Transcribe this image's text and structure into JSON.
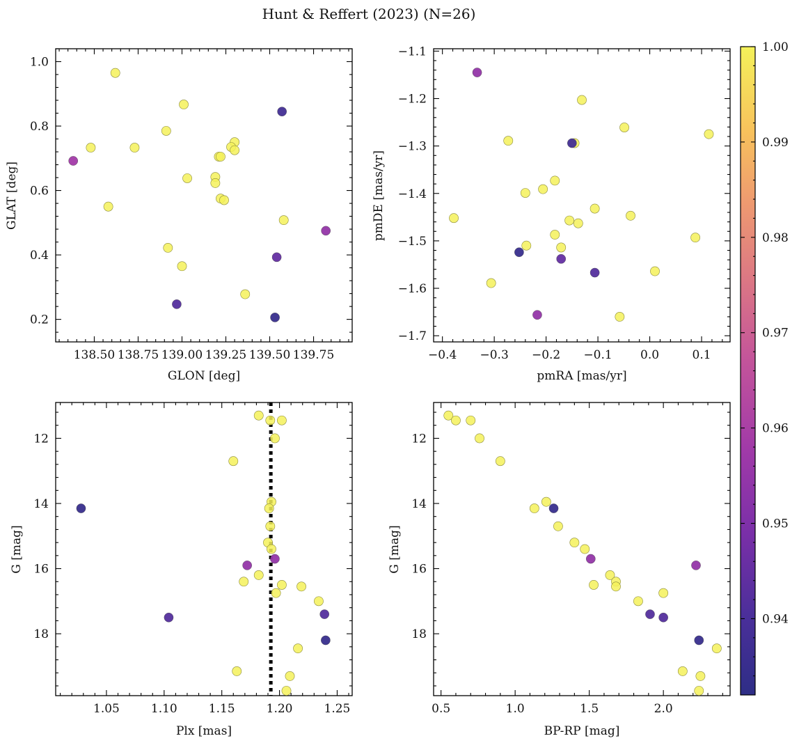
{
  "figure_title": "Hunt & Reffert (2023) (N=26)",
  "colorbar": {
    "cmap": "plasma",
    "range": [
      0.932,
      1.0
    ],
    "ticks": [
      0.94,
      0.95,
      0.96,
      0.97,
      0.98,
      0.99,
      1.0
    ],
    "tick_labels": [
      "0.94",
      "0.95",
      "0.96",
      "0.97",
      "0.98",
      "0.99",
      "1.00"
    ]
  },
  "chart_data": [
    {
      "type": "scatter",
      "id": "pos",
      "xlabel": "GLON [deg]",
      "ylabel": "GLAT [deg]",
      "xlim": [
        138.28,
        139.97
      ],
      "ylim": [
        0.13,
        1.04
      ],
      "yinvert": false,
      "xticks": [
        138.5,
        138.75,
        139.0,
        139.25,
        139.5,
        139.75
      ],
      "xtick_labels": [
        "138.50",
        "138.75",
        "139.00",
        "139.25",
        "139.50",
        "139.75"
      ],
      "yticks": [
        0.2,
        0.4,
        0.6,
        0.8,
        1.0
      ],
      "ytick_labels": [
        "0.2",
        "0.4",
        "0.6",
        "0.8",
        "1.0"
      ],
      "points": [
        [
          138.62,
          0.965,
          1.0
        ],
        [
          139.01,
          0.867,
          1.0
        ],
        [
          139.57,
          0.845,
          0.938
        ],
        [
          138.91,
          0.785,
          1.0
        ],
        [
          138.48,
          0.733,
          1.0
        ],
        [
          138.73,
          0.733,
          1.0
        ],
        [
          139.3,
          0.75,
          1.0
        ],
        [
          139.28,
          0.735,
          1.0
        ],
        [
          139.3,
          0.725,
          1.0
        ],
        [
          139.21,
          0.705,
          1.0
        ],
        [
          139.22,
          0.705,
          1.0
        ],
        [
          138.38,
          0.692,
          0.958
        ],
        [
          139.03,
          0.638,
          1.0
        ],
        [
          139.19,
          0.642,
          1.0
        ],
        [
          139.19,
          0.623,
          1.0
        ],
        [
          139.22,
          0.575,
          1.0
        ],
        [
          139.24,
          0.57,
          1.0
        ],
        [
          138.58,
          0.55,
          1.0
        ],
        [
          139.58,
          0.508,
          1.0
        ],
        [
          139.82,
          0.475,
          0.955
        ],
        [
          138.92,
          0.422,
          1.0
        ],
        [
          139.54,
          0.393,
          0.945
        ],
        [
          139.0,
          0.365,
          1.0
        ],
        [
          139.36,
          0.278,
          1.0
        ],
        [
          138.97,
          0.247,
          0.942
        ],
        [
          139.53,
          0.206,
          0.935
        ]
      ]
    },
    {
      "type": "scatter",
      "id": "pm",
      "xlabel": "pmRA [mas/yr]",
      "ylabel": "pmDE [mas/yr]",
      "xlim": [
        -0.417,
        0.155
      ],
      "ylim": [
        -1.713,
        -1.095
      ],
      "yinvert": false,
      "xticks": [
        -0.4,
        -0.3,
        -0.2,
        -0.1,
        0.0,
        0.1
      ],
      "xtick_labels": [
        "−0.4",
        "−0.3",
        "−0.2",
        "−0.1",
        "0.0",
        "0.1"
      ],
      "yticks": [
        -1.7,
        -1.6,
        -1.5,
        -1.4,
        -1.3,
        -1.2,
        -1.1
      ],
      "ytick_labels": [
        "−1.7",
        "−1.6",
        "−1.5",
        "−1.4",
        "−1.3",
        "−1.2",
        "−1.1"
      ],
      "points": [
        [
          -0.333,
          -1.145,
          0.955
        ],
        [
          -0.131,
          -1.203,
          1.0
        ],
        [
          -0.049,
          -1.261,
          1.0
        ],
        [
          0.114,
          -1.275,
          1.0
        ],
        [
          -0.273,
          -1.289,
          1.0
        ],
        [
          -0.145,
          -1.294,
          1.0
        ],
        [
          -0.15,
          -1.294,
          0.938
        ],
        [
          -0.183,
          -1.373,
          1.0
        ],
        [
          -0.206,
          -1.391,
          1.0
        ],
        [
          -0.24,
          -1.399,
          1.0
        ],
        [
          -0.106,
          -1.432,
          1.0
        ],
        [
          -0.037,
          -1.447,
          1.0
        ],
        [
          -0.378,
          -1.452,
          1.0
        ],
        [
          -0.155,
          -1.457,
          1.0
        ],
        [
          -0.138,
          -1.463,
          1.0
        ],
        [
          -0.183,
          -1.487,
          1.0
        ],
        [
          0.088,
          -1.493,
          1.0
        ],
        [
          -0.238,
          -1.51,
          1.0
        ],
        [
          -0.171,
          -1.514,
          1.0
        ],
        [
          -0.252,
          -1.524,
          0.935
        ],
        [
          -0.171,
          -1.538,
          0.945
        ],
        [
          -0.106,
          -1.567,
          0.942
        ],
        [
          0.01,
          -1.564,
          1.0
        ],
        [
          -0.306,
          -1.589,
          1.0
        ],
        [
          -0.217,
          -1.656,
          0.955
        ],
        [
          -0.058,
          -1.66,
          1.0
        ]
      ]
    },
    {
      "type": "scatter",
      "id": "plx",
      "xlabel": "Plx [mas]",
      "ylabel": "G [mag]",
      "xlim": [
        1.006,
        1.263
      ],
      "ylim": [
        10.9,
        19.9
      ],
      "yinvert": true,
      "vline": 1.1925,
      "xticks": [
        1.05,
        1.1,
        1.15,
        1.2,
        1.25
      ],
      "xtick_labels": [
        "1.05",
        "1.10",
        "1.15",
        "1.20",
        "1.25"
      ],
      "yticks": [
        12,
        14,
        16,
        18
      ],
      "ytick_labels": [
        "12",
        "14",
        "16",
        "18"
      ],
      "points": [
        [
          1.182,
          11.3,
          1.0
        ],
        [
          1.192,
          11.45,
          1.0
        ],
        [
          1.202,
          11.45,
          1.0
        ],
        [
          1.196,
          12.0,
          1.0
        ],
        [
          1.16,
          12.7,
          1.0
        ],
        [
          1.028,
          14.15,
          0.935
        ],
        [
          1.193,
          13.95,
          1.0
        ],
        [
          1.191,
          14.15,
          1.0
        ],
        [
          1.192,
          14.7,
          1.0
        ],
        [
          1.19,
          15.2,
          1.0
        ],
        [
          1.193,
          15.4,
          1.0
        ],
        [
          1.196,
          15.7,
          0.955
        ],
        [
          1.172,
          15.9,
          0.955
        ],
        [
          1.182,
          16.2,
          1.0
        ],
        [
          1.169,
          16.4,
          1.0
        ],
        [
          1.202,
          16.5,
          1.0
        ],
        [
          1.219,
          16.55,
          1.0
        ],
        [
          1.197,
          16.75,
          1.0
        ],
        [
          1.234,
          17.0,
          1.0
        ],
        [
          1.104,
          17.5,
          0.942
        ],
        [
          1.239,
          17.4,
          0.942
        ],
        [
          1.24,
          18.2,
          0.935
        ],
        [
          1.216,
          18.45,
          1.0
        ],
        [
          1.163,
          19.15,
          1.0
        ],
        [
          1.209,
          19.3,
          1.0
        ],
        [
          1.206,
          19.75,
          1.0
        ]
      ]
    },
    {
      "type": "scatter",
      "id": "cmd",
      "xlabel": "BP-RP [mag]",
      "ylabel": "G [mag]",
      "xlim": [
        0.45,
        2.45
      ],
      "ylim": [
        10.9,
        19.9
      ],
      "yinvert": true,
      "xticks": [
        0.5,
        1.0,
        1.5,
        2.0
      ],
      "xtick_labels": [
        "0.5",
        "1.0",
        "1.5",
        "2.0"
      ],
      "yticks": [
        12,
        14,
        16,
        18
      ],
      "ytick_labels": [
        "12",
        "14",
        "16",
        "18"
      ],
      "points": [
        [
          0.55,
          11.3,
          1.0
        ],
        [
          0.6,
          11.45,
          1.0
        ],
        [
          0.7,
          11.45,
          1.0
        ],
        [
          0.76,
          12.0,
          1.0
        ],
        [
          0.9,
          12.7,
          1.0
        ],
        [
          1.21,
          13.95,
          1.0
        ],
        [
          1.13,
          14.15,
          1.0
        ],
        [
          1.26,
          14.15,
          0.935
        ],
        [
          1.29,
          14.7,
          1.0
        ],
        [
          1.4,
          15.2,
          1.0
        ],
        [
          1.47,
          15.4,
          1.0
        ],
        [
          1.51,
          15.7,
          0.955
        ],
        [
          2.22,
          15.9,
          0.955
        ],
        [
          1.64,
          16.2,
          1.0
        ],
        [
          1.68,
          16.4,
          1.0
        ],
        [
          1.53,
          16.5,
          1.0
        ],
        [
          1.68,
          16.55,
          1.0
        ],
        [
          2.0,
          16.75,
          1.0
        ],
        [
          1.83,
          17.0,
          1.0
        ],
        [
          1.91,
          17.4,
          0.942
        ],
        [
          2.0,
          17.5,
          0.942
        ],
        [
          2.24,
          18.2,
          0.935
        ],
        [
          2.36,
          18.45,
          1.0
        ],
        [
          2.13,
          19.15,
          1.0
        ],
        [
          2.25,
          19.3,
          1.0
        ],
        [
          2.24,
          19.75,
          1.0
        ]
      ]
    }
  ]
}
